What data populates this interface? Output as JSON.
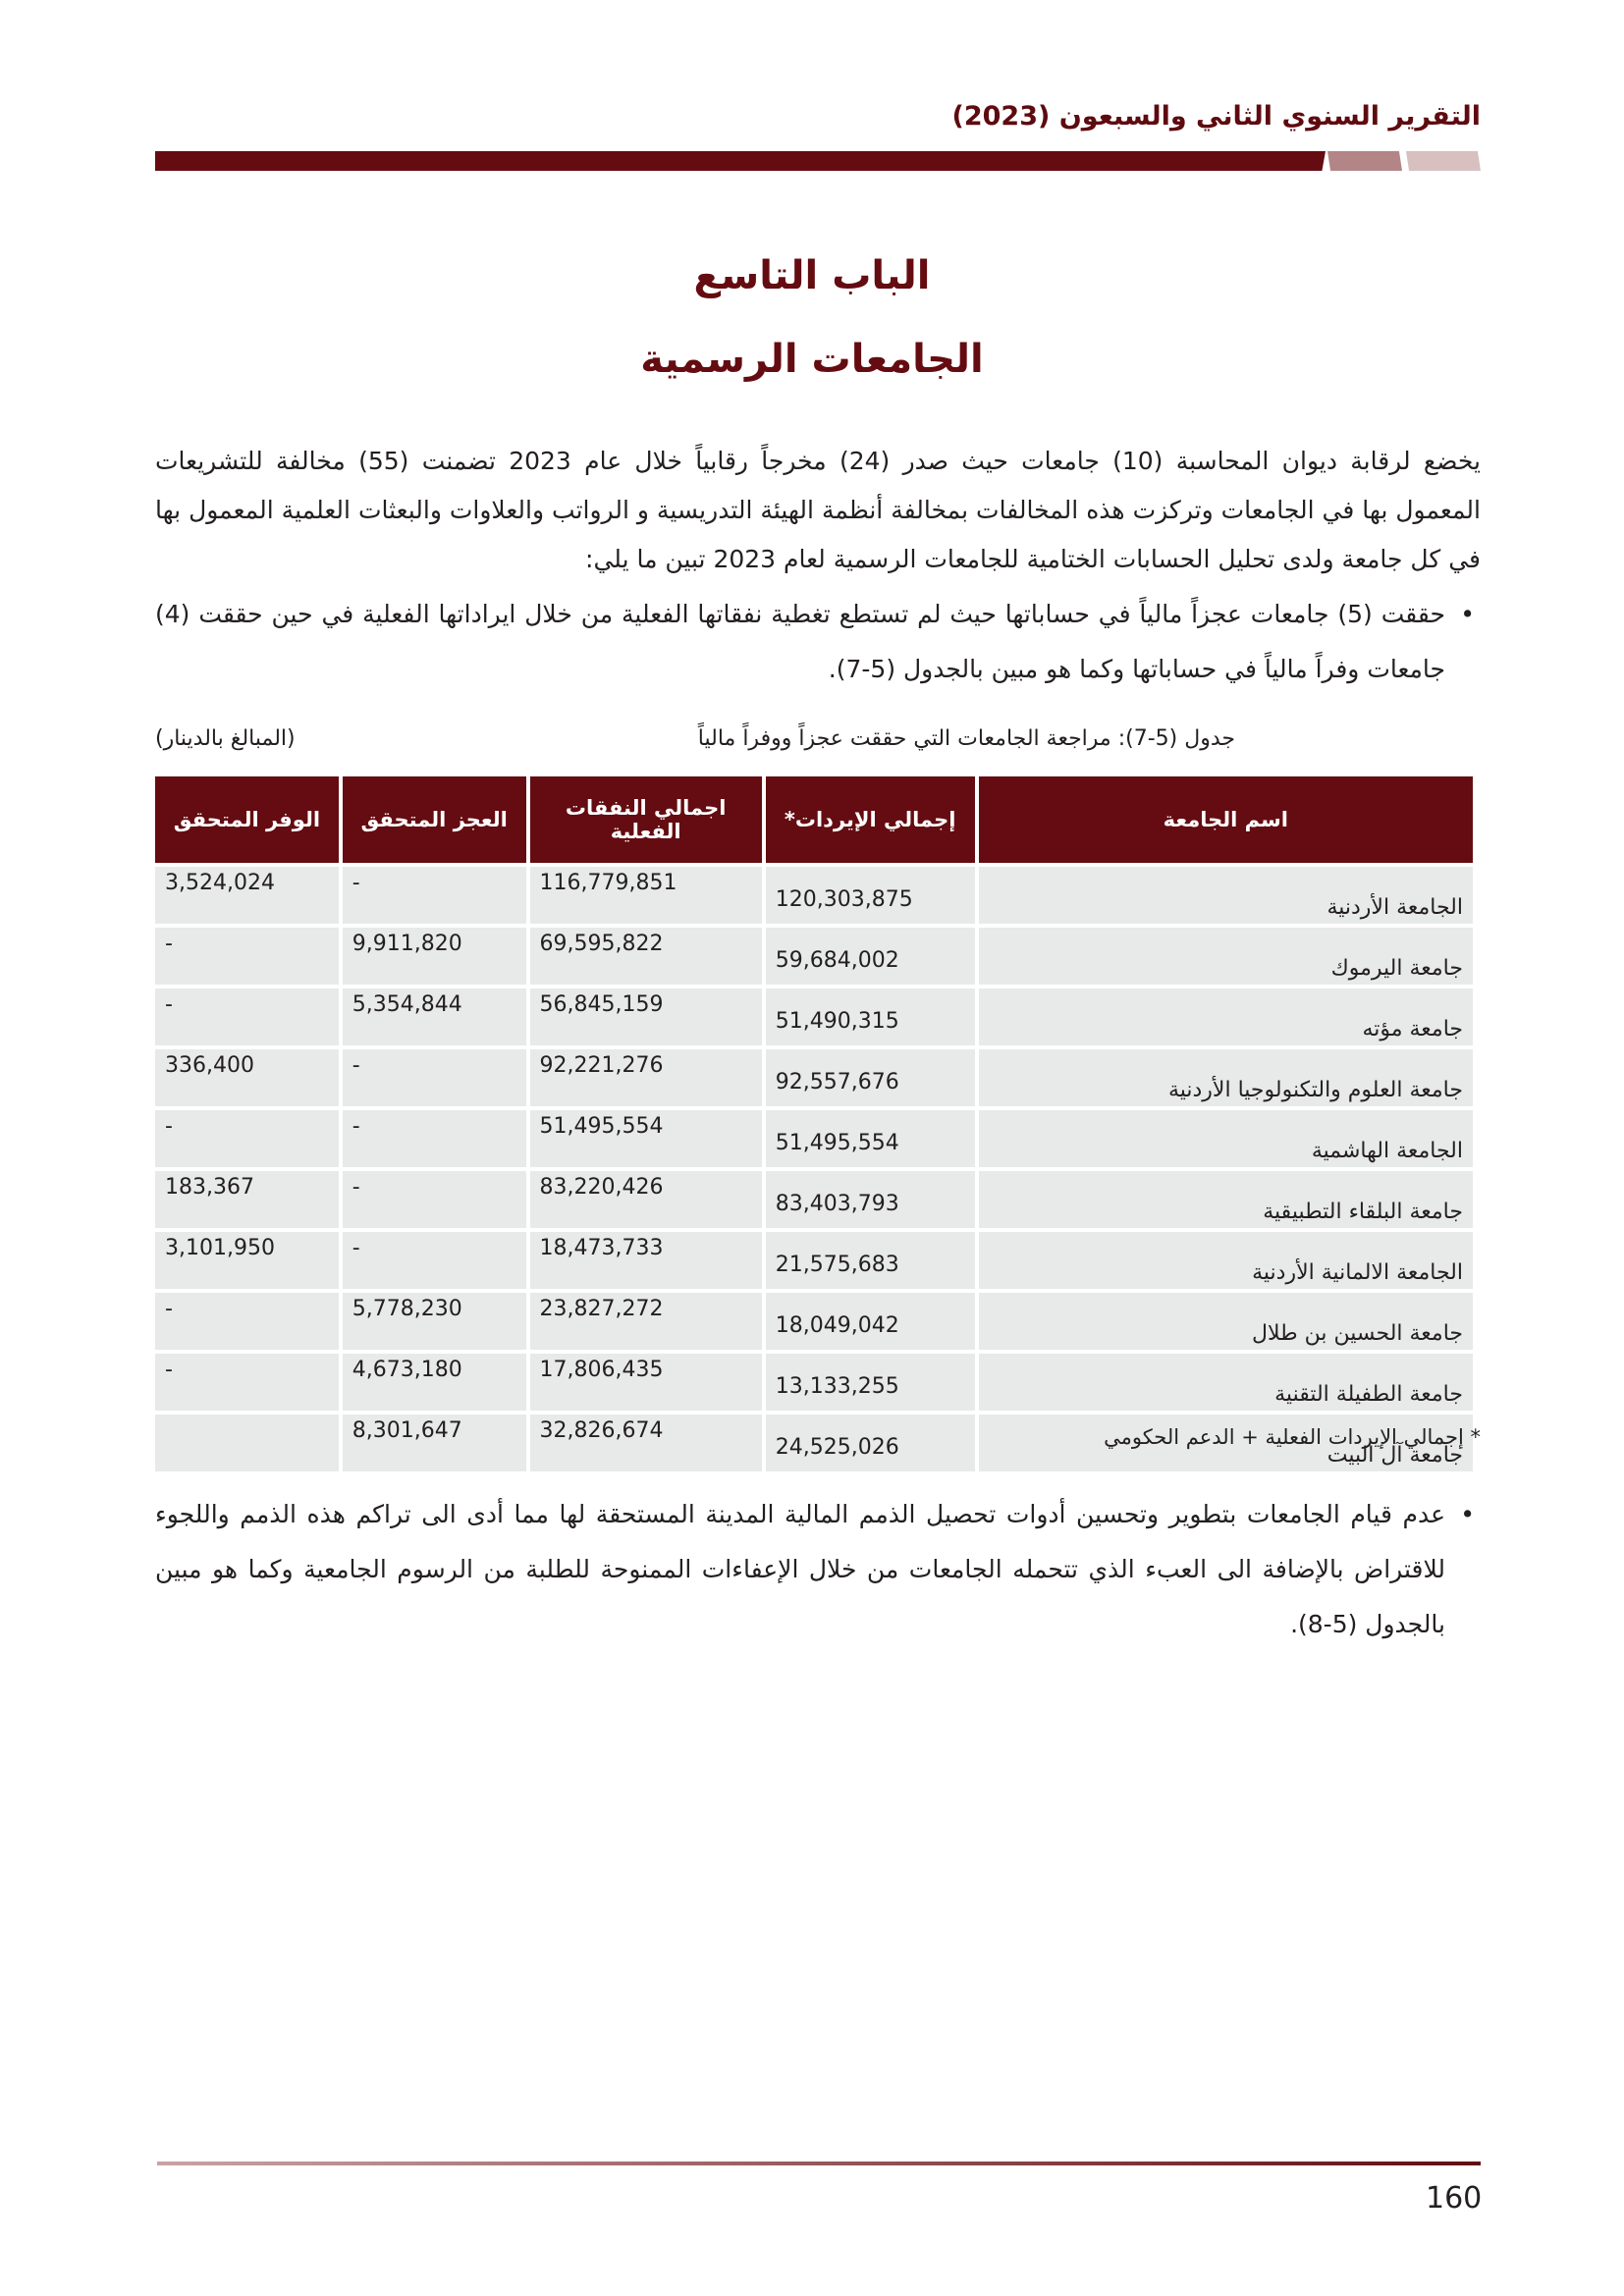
{
  "header": {
    "title": "التقرير السنوي الثاني والسبعون (2023)"
  },
  "chapter": {
    "number_title": "الباب التاسع",
    "title": "الجامعات الرسمية"
  },
  "intro": "يخضع لرقابة ديوان المحاسبة (10) جامعات حيث صدر (24) مخرجاً رقابياً خلال عام 2023 تضمنت (55) مخالفة للتشريعات المعمول بها في الجامعات وتركزت هذه المخالفات بمخالفة أنظمة الهيئة التدريسية و الرواتب والعلاوات والبعثات العلمية المعمول بها في كل جامعة ولدى تحليل الحسابات الختامية للجامعات الرسمية لعام 2023  تبين ما يلي:",
  "bullets": [
    "حققت (5) جامعات عجزاً مالياً في حساباتها حيث لم تستطع تغطية نفقاتها الفعلية من خلال ايراداتها الفعلية في حين حققت (4) جامعات وفراً مالياً في حساباتها وكما هو مبين بالجدول (5-7).",
    "عدم قيام الجامعات بتطوير وتحسين أدوات تحصيل الذمم المالية المدينة المستحقة لها مما أدى الى تراكم هذه الذمم واللجوء للاقتراض بالإضافة الى العبء الذي تتحمله الجامعات من خلال الإعفاءات الممنوحة للطلبة من الرسوم الجامعية وكما هو مبين بالجدول (5-8)."
  ],
  "table": {
    "caption": "جدول (5-7): مراجعة الجامعات التي حققت عجزاً ووفراً مالياً",
    "unit": "(المبالغ بالدينار)",
    "headers": [
      "اسم الجامعة",
      "إجمالي الإيردات*",
      "اجمالي النفقات الفعلية",
      "العجز المتحقق",
      "الوفر المتحقق"
    ],
    "rows": [
      [
        "الجامعة الأردنية",
        "120,303,875",
        "116,779,851",
        "-",
        "3,524,024"
      ],
      [
        "جامعة اليرموك",
        "59,684,002",
        "69,595,822",
        "9,911,820",
        "-"
      ],
      [
        "جامعة مؤته",
        "51,490,315",
        "56,845,159",
        "5,354,844",
        "-"
      ],
      [
        "جامعة العلوم والتكنولوجيا الأردنية",
        "92,557,676",
        "92,221,276",
        "-",
        "336,400"
      ],
      [
        "الجامعة الهاشمية",
        "51,495,554",
        "51,495,554",
        "-",
        "-"
      ],
      [
        "جامعة البلقاء التطبيقية",
        "83,403,793",
        "83,220,426",
        "-",
        "183,367"
      ],
      [
        "الجامعة الالمانية الأردنية",
        "21,575,683",
        "18,473,733",
        "-",
        "3,101,950"
      ],
      [
        "جامعة الحسين بن طلال",
        "18,049,042",
        "23,827,272",
        "5,778,230",
        "-"
      ],
      [
        "جامعة الطفيلة التقنية",
        "13,133,255",
        "17,806,435",
        "4,673,180",
        "-"
      ],
      [
        "جامعة آل البيت",
        "24,525,026",
        "32,826,674",
        "8,301,647",
        ""
      ]
    ],
    "footnote": "* إجمالي الإيردات الفعلية + الدعم الحكومي"
  },
  "page_number": "160",
  "colors": {
    "brand": "#640c11",
    "cell_bg": "#e8e9e9"
  }
}
